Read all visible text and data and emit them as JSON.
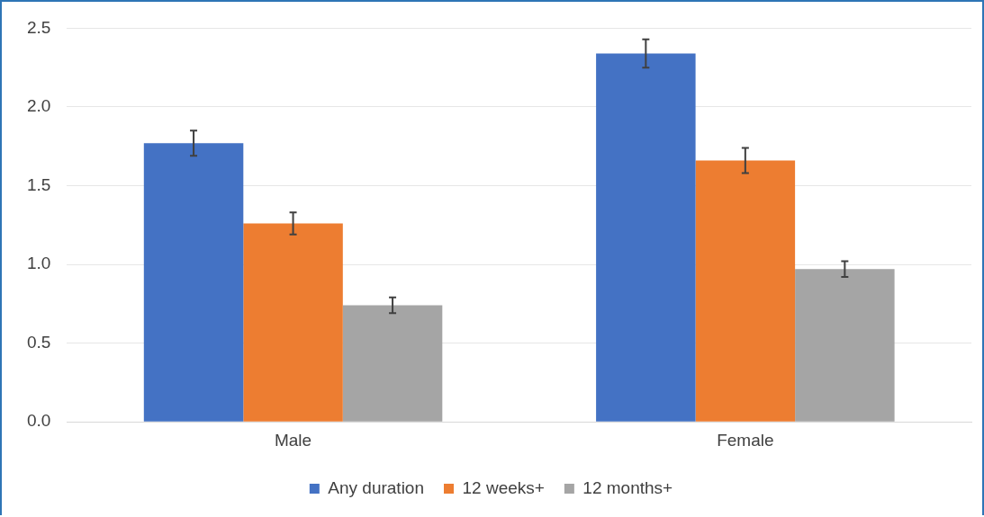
{
  "chart_data": {
    "type": "bar",
    "categories": [
      "Male",
      "Female"
    ],
    "series": [
      {
        "name": "Any duration",
        "color": "#4472c4",
        "values": [
          1.77,
          2.34
        ],
        "errors": [
          0.08,
          0.09
        ]
      },
      {
        "name": "12 weeks+",
        "color": "#ed7d31",
        "values": [
          1.26,
          1.66
        ],
        "errors": [
          0.07,
          0.08
        ]
      },
      {
        "name": "12 months+",
        "color": "#a5a5a5",
        "values": [
          0.74,
          0.97
        ],
        "errors": [
          0.05,
          0.05
        ]
      }
    ],
    "ylim": [
      0,
      2.5
    ],
    "yticks": [
      {
        "value": 0,
        "label": "0.0"
      },
      {
        "value": 0.5,
        "label": "0.5"
      },
      {
        "value": 1,
        "label": "1.0"
      },
      {
        "value": 1.5,
        "label": "1.5"
      },
      {
        "value": 2,
        "label": "2.0"
      },
      {
        "value": 2.5,
        "label": "2.5"
      }
    ],
    "grid": "y",
    "legend": "bottom"
  }
}
